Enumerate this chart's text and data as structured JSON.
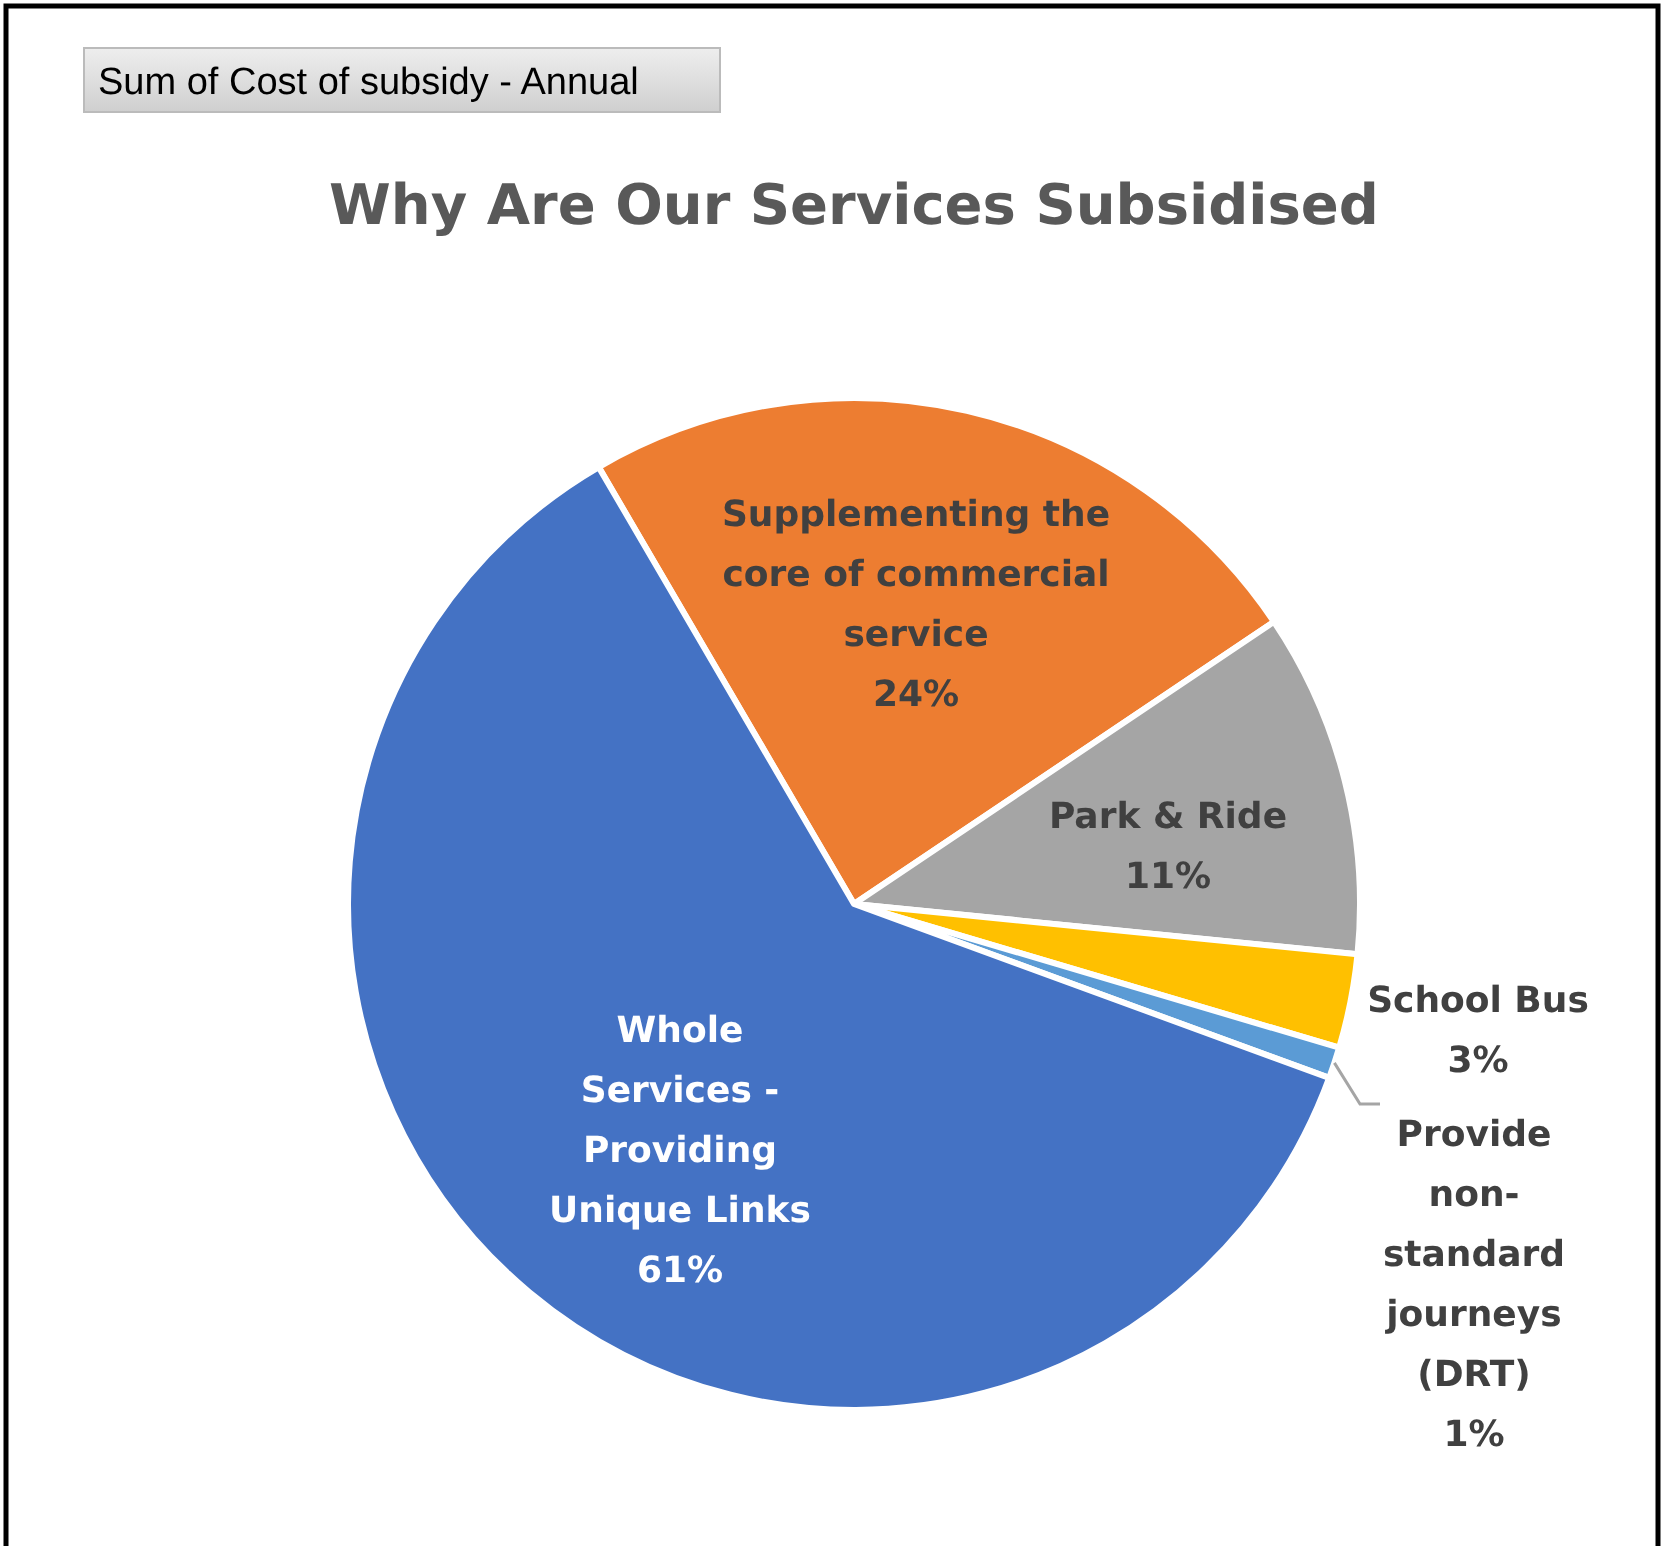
{
  "chart_data": {
    "type": "pie",
    "title": "Why Are Our Services Subsidised",
    "subtitle": "Sum of Cost of subsidy - Annual",
    "categories": [
      "Supplementing the core of commercial service",
      "Park & Ride",
      "School Bus",
      "Provide non-standard journeys (DRT)",
      "Whole Services - Providing Unique Links"
    ],
    "values": [
      24,
      11,
      3,
      1,
      61
    ],
    "colors": [
      "#ed7d31",
      "#a5a5a5",
      "#ffc000",
      "#5b9bd5",
      "#4472c4"
    ],
    "value_labels": [
      "24%",
      "11%",
      "3%",
      "1%",
      "61%"
    ]
  }
}
